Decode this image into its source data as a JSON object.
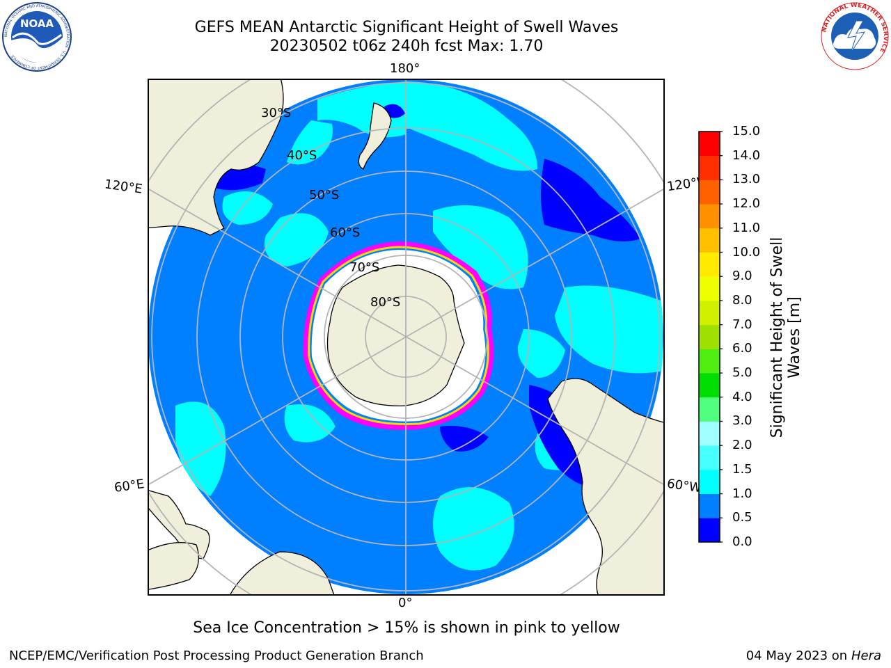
{
  "title": {
    "line1": "GEFS MEAN Antarctic Significant Height of Swell Waves",
    "line2": "20230502 t06z 240h fcst   Max: 1.70"
  },
  "map": {
    "projection": "south-polar-stereographic",
    "longitude_labels": {
      "top": "180°",
      "bottom": "0°",
      "left_upper": "120°E",
      "left_lower": "60°E",
      "right_upper": "120°W",
      "right_lower": "60°W"
    },
    "latitude_labels": [
      "30°S",
      "40°S",
      "50°S",
      "60°S",
      "70°S",
      "80°S"
    ],
    "colors": {
      "ocean_fill": "#0080ff",
      "land": "#efefdb",
      "graticule": "#b4b4b4",
      "sea_ice_low": "#ff00ff",
      "sea_ice_high": "#ffd800"
    }
  },
  "colorbar": {
    "title_line1": "Significant Height of Swell",
    "title_line2": "Waves [m]",
    "ticks": [
      "0.0",
      "0.5",
      "1.0",
      "1.5",
      "2.0",
      "3.0",
      "4.0",
      "5.0",
      "6.0",
      "7.0",
      "8.0",
      "9.0",
      "10.0",
      "11.0",
      "12.0",
      "13.0",
      "14.0",
      "15.0"
    ],
    "colors": [
      "#0000ff",
      "#0080ff",
      "#00ffff",
      "#48ffff",
      "#a0ffff",
      "#50ff80",
      "#00dd00",
      "#50ee10",
      "#a0e000",
      "#d0f000",
      "#f0ff00",
      "#ffea00",
      "#ffc000",
      "#ff9000",
      "#ff6000",
      "#ff3000",
      "#ff0000"
    ]
  },
  "note": "Sea Ice Concentration > 15% is shown in pink to yellow",
  "footer": {
    "left": "NCEP/EMC/Verification Post Processing Product Generation Branch",
    "date": "04 May 2023 on",
    "machine": "Hera"
  },
  "logos": {
    "noaa_text": "NOAA",
    "noaa_ring": "NATIONAL OCEANIC AND ATMOSPHERIC ADMINISTRATION · U.S. DEPARTMENT OF COMMERCE",
    "nws_ring": "NATIONAL WEATHER SERVICE"
  }
}
